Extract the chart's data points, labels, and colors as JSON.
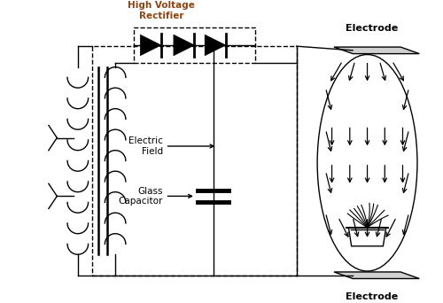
{
  "bg_color": "#ffffff",
  "hv_rectifier_label": "High Voltage\nRectifier",
  "hv_rectifier_color": "#8B4513",
  "electrode_label": "Electrode",
  "electric_field_label": "Electric\nField",
  "glass_cap_label": "Glass\nCapacitor",
  "fig_width": 5.0,
  "fig_height": 3.42,
  "dpi": 100
}
